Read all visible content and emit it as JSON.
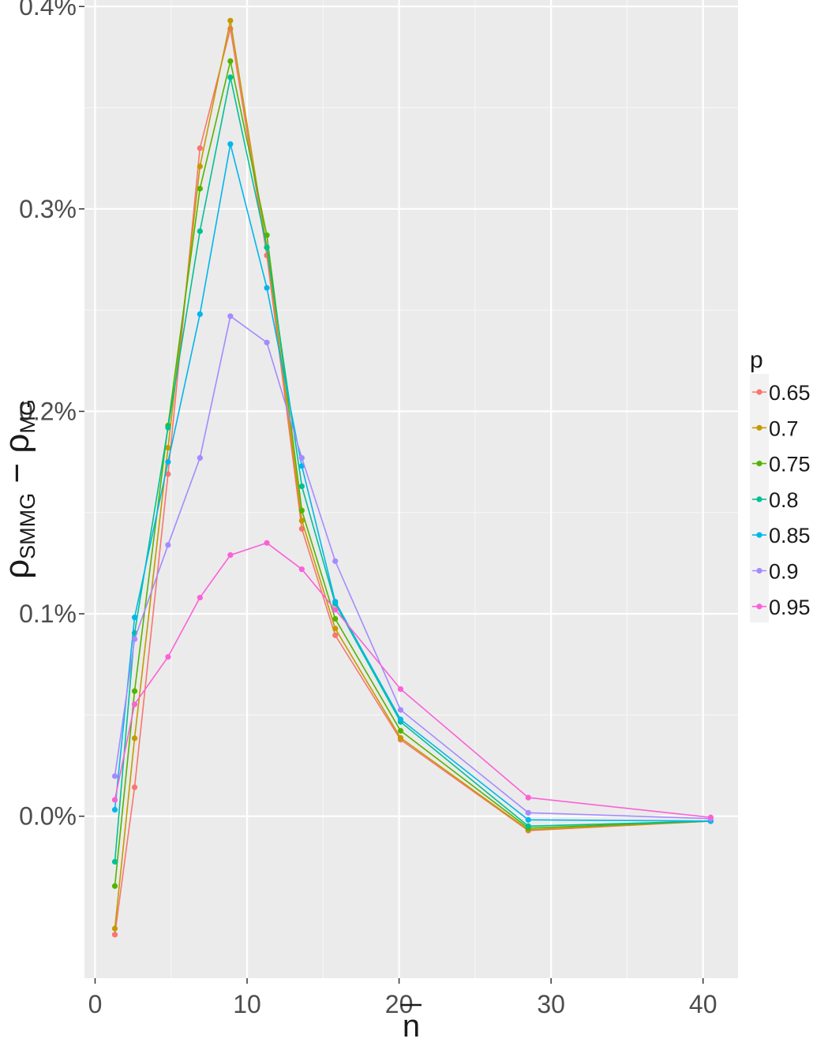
{
  "chart_data": {
    "type": "line",
    "title": "",
    "xlabel": "n",
    "ylabel": {
      "rho1": "ρ",
      "sub1": "SMMG",
      "minus": " − ",
      "rho2": "ρ",
      "sub2": "MG"
    },
    "xlim": [
      -0.7,
      42.3
    ],
    "ylim": [
      -0.08,
      0.4032
    ],
    "x_ticks": [
      0,
      10,
      20,
      30,
      40
    ],
    "x_tick_labels": [
      "0",
      "10",
      "20",
      "30",
      "40"
    ],
    "y_ticks": [
      0.0,
      0.1,
      0.2,
      0.3,
      0.4
    ],
    "y_tick_labels": [
      "0.0%",
      "0.1%",
      "0.2%",
      "0.3%",
      "0.4%"
    ],
    "y_unit": "%",
    "grid": true,
    "legend": {
      "title": "p",
      "placement": "right"
    },
    "x": [
      1.3,
      2.6,
      4.8,
      6.9,
      8.9,
      11.3,
      13.6,
      15.8,
      20.1,
      28.5,
      40.5
    ],
    "series": [
      {
        "name": "0.65",
        "color": "#F8766D",
        "values": [
          -0.0585,
          0.0143,
          0.169,
          0.33,
          0.389,
          0.277,
          0.142,
          0.0894,
          0.0378,
          -0.0071,
          -0.0024
        ]
      },
      {
        "name": "0.7",
        "color": "#C49A00",
        "values": [
          -0.0555,
          0.0385,
          0.182,
          0.321,
          0.393,
          0.281,
          0.146,
          0.0927,
          0.0387,
          -0.0067,
          -0.0024
        ]
      },
      {
        "name": "0.75",
        "color": "#53B400",
        "values": [
          -0.0345,
          0.0618,
          0.193,
          0.31,
          0.373,
          0.287,
          0.151,
          0.0975,
          0.0422,
          -0.0059,
          -0.0024
        ]
      },
      {
        "name": "0.8",
        "color": "#00C094",
        "values": [
          -0.0225,
          0.0905,
          0.192,
          0.289,
          0.365,
          0.281,
          0.163,
          0.105,
          0.0466,
          -0.0049,
          -0.0024
        ]
      },
      {
        "name": "0.85",
        "color": "#00B6EB",
        "values": [
          0.0032,
          0.0982,
          0.175,
          0.248,
          0.332,
          0.261,
          0.173,
          0.106,
          0.0478,
          -0.0018,
          -0.0024
        ]
      },
      {
        "name": "0.9",
        "color": "#A58AFF",
        "values": [
          0.0198,
          0.0875,
          0.134,
          0.177,
          0.247,
          0.234,
          0.177,
          0.126,
          0.0525,
          0.0017,
          -0.0012
        ]
      },
      {
        "name": "0.95",
        "color": "#FB61D7",
        "values": [
          0.0081,
          0.0553,
          0.0787,
          0.108,
          0.129,
          0.135,
          0.122,
          0.102,
          0.0628,
          0.0092,
          -0.0006
        ]
      }
    ]
  }
}
